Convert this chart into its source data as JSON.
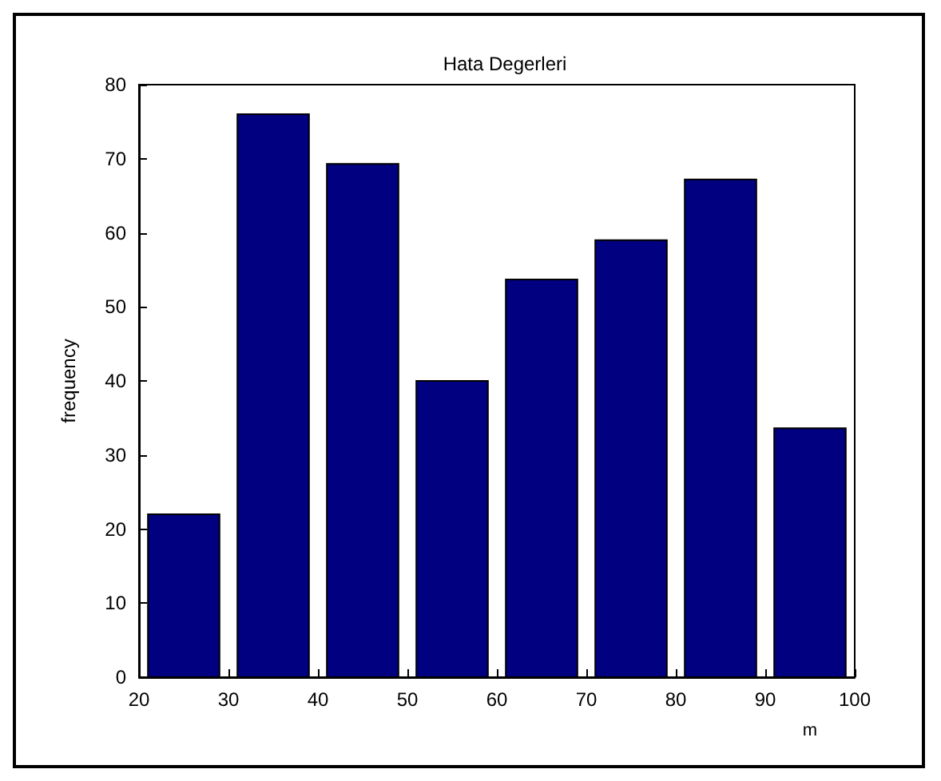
{
  "chart_data": {
    "type": "histogram",
    "title": "Hata Degerleri",
    "xlabel": "m",
    "ylabel": "frequency",
    "bins": [
      20,
      30,
      40,
      50,
      60,
      70,
      80,
      90,
      100
    ],
    "values": [
      22,
      76,
      69.3,
      40,
      53.7,
      59,
      67.2,
      33.6
    ],
    "color": "#000080",
    "xlim": [
      20,
      100
    ],
    "xticks": [
      20,
      30,
      40,
      50,
      60,
      70,
      80,
      90,
      100
    ],
    "ylim": [
      0,
      80
    ],
    "yticks": [
      0,
      10,
      20,
      30,
      40,
      50,
      60,
      70,
      80
    ],
    "grid": false,
    "legend": false
  }
}
